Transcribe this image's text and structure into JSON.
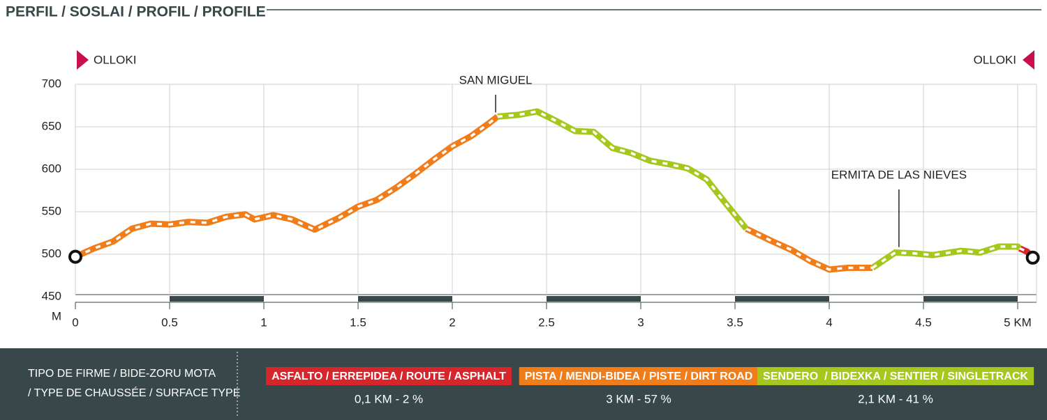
{
  "chart_data": {
    "type": "line",
    "title": "PERFIL / SOSLAI / PROFIL / PROFILE",
    "start_label": "OLLOKI",
    "end_label": "OLLOKI",
    "y_unit": "M",
    "annotations": [
      {
        "text": "SAN MIGUEL",
        "x": 2.23
      },
      {
        "text": "ERMITA DE LAS NIEVES",
        "x": 4.37
      }
    ],
    "xlim": [
      0,
      5.1
    ],
    "ylim": [
      450,
      700
    ],
    "xticks": [
      0,
      0.5,
      1,
      1.5,
      2,
      2.5,
      3,
      3.5,
      4,
      4.5,
      {
        "value": 5,
        "label": "5 KM"
      }
    ],
    "yticks": [
      450,
      500,
      550,
      600,
      650,
      700
    ],
    "grid": true,
    "legend_title": [
      "TIPO DE FIRME / BIDE-ZORU MOTA",
      "/ TYPE DE CHAUSSÉE / SURFACE TYPE"
    ],
    "series": [
      {
        "name": "ASFALTO / ERREPIDEA / ROUTE / ASPHALT",
        "color": "#d7262b",
        "summary": "0,1 KM - 2 %",
        "x": [
          5.01,
          5.05,
          5.08
        ],
        "values": [
          507,
          503,
          496
        ]
      },
      {
        "name": "PISTA / MENDI-BIDEA / PISTE / DIRT ROAD",
        "color": "#f07d1a",
        "summary": "3 KM - 57 %",
        "x": [
          0,
          0.1,
          0.2,
          0.3,
          0.4,
          0.5,
          0.6,
          0.7,
          0.8,
          0.9,
          0.95,
          1.05,
          1.15,
          1.27,
          1.4,
          1.5,
          1.6,
          1.7,
          1.8,
          1.9,
          2.0,
          2.1,
          2.2,
          2.24,
          null,
          3.56,
          3.7,
          3.8,
          3.9,
          4.0,
          4.1,
          4.23
        ],
        "values": [
          497,
          507,
          515,
          530,
          536,
          535,
          538,
          537,
          544,
          547,
          541,
          546,
          541,
          529,
          543,
          556,
          564,
          578,
          594,
          611,
          627,
          639,
          655,
          662,
          null,
          530,
          515,
          505,
          492,
          482,
          484,
          484
        ]
      },
      {
        "name": "SENDERO  / BIDEXKA / SENTIER / SINGLETRACK",
        "color": "#a6c81e",
        "summary": "2,1 KM - 41 %",
        "x": [
          2.24,
          2.35,
          2.45,
          2.55,
          2.65,
          2.75,
          2.85,
          2.95,
          3.05,
          3.15,
          3.25,
          3.35,
          3.45,
          3.56,
          null,
          4.23,
          4.35,
          4.45,
          4.55,
          4.7,
          4.8,
          4.9,
          5.0,
          5.01
        ],
        "values": [
          662,
          664,
          668,
          657,
          645,
          644,
          625,
          619,
          610,
          606,
          601,
          588,
          560,
          530,
          null,
          484,
          502,
          501,
          499,
          504,
          502,
          509,
          509,
          507
        ]
      }
    ]
  }
}
